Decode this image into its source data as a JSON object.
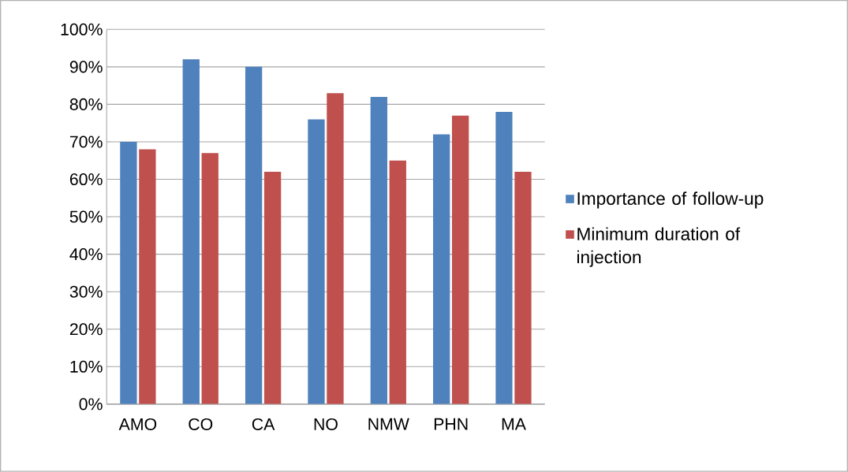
{
  "chart_data": {
    "type": "bar",
    "categories": [
      "AMO",
      "CO",
      "CA",
      "NO",
      "NMW",
      "PHN",
      "MA"
    ],
    "series": [
      {
        "name": "Importance of follow-up",
        "color": "#4f81bd",
        "values": [
          70,
          92,
          90,
          76,
          82,
          72,
          78
        ]
      },
      {
        "name": "Minimum duration of injection",
        "color": "#c0504d",
        "values": [
          68,
          67,
          62,
          83,
          65,
          77,
          62
        ]
      }
    ],
    "ylim": [
      0,
      100
    ],
    "yticks": [
      {
        "value": 0,
        "label": "0%"
      },
      {
        "value": 10,
        "label": "10%"
      },
      {
        "value": 20,
        "label": "20%"
      },
      {
        "value": 30,
        "label": "30%"
      },
      {
        "value": 40,
        "label": "40%"
      },
      {
        "value": 50,
        "label": "50%"
      },
      {
        "value": 60,
        "label": "60%"
      },
      {
        "value": 70,
        "label": "70%"
      },
      {
        "value": 80,
        "label": "80%"
      },
      {
        "value": 90,
        "label": "90%"
      },
      {
        "value": 100,
        "label": "100%"
      }
    ],
    "grid": "y",
    "legend": "right"
  }
}
